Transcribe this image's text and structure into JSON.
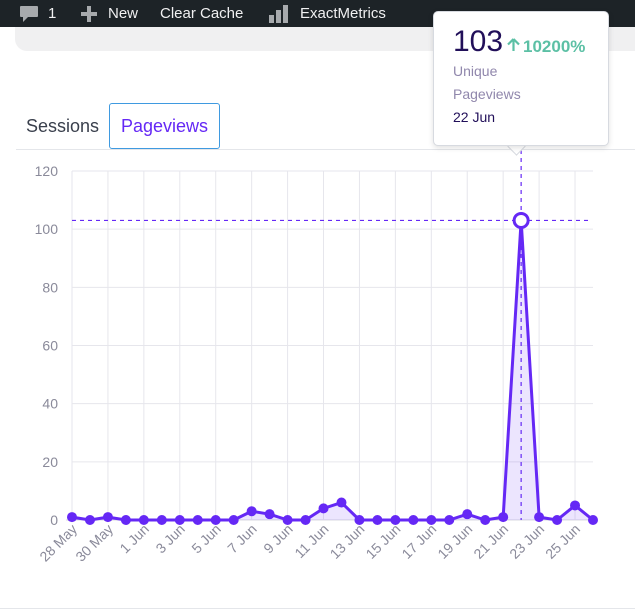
{
  "admin_bar": {
    "comments_count": "1",
    "new_label": "New",
    "clear_cache_label": "Clear Cache",
    "plugin_label": "ExactMetrics"
  },
  "tabs": [
    {
      "label": "Sessions",
      "active": false
    },
    {
      "label": "Pageviews",
      "active": true
    }
  ],
  "tooltip": {
    "value": "103",
    "change": "10200%",
    "label_line1": "Unique",
    "label_line2": "Pageviews",
    "date": "22 Jun"
  },
  "colors": {
    "accent": "#6528f5",
    "increase": "#5cc0a5",
    "admin_bar_bg": "#1d2327"
  },
  "chart_data": {
    "type": "line",
    "series": [
      {
        "name": "Unique Pageviews",
        "values": [
          1,
          0,
          1,
          0,
          0,
          0,
          0,
          0,
          0,
          0,
          3,
          2,
          0,
          0,
          4,
          6,
          0,
          0,
          0,
          0,
          0,
          0,
          2,
          0,
          1,
          103,
          1,
          0,
          5,
          0
        ]
      }
    ],
    "dates": [
      "28 May",
      "29 May",
      "30 May",
      "31 May",
      "1 Jun",
      "2 Jun",
      "3 Jun",
      "4 Jun",
      "5 Jun",
      "6 Jun",
      "7 Jun",
      "8 Jun",
      "9 Jun",
      "10 Jun",
      "11 Jun",
      "12 Jun",
      "13 Jun",
      "14 Jun",
      "15 Jun",
      "16 Jun",
      "17 Jun",
      "18 Jun",
      "19 Jun",
      "20 Jun",
      "21 Jun",
      "22 Jun",
      "23 Jun",
      "24 Jun",
      "25 Jun",
      "26 Jun"
    ],
    "x_tick_labels": [
      "28 May",
      "30 May",
      "1 Jun",
      "3 Jun",
      "5 Jun",
      "7 Jun",
      "9 Jun",
      "11 Jun",
      "13 Jun",
      "15 Jun",
      "17 Jun",
      "19 Jun",
      "21 Jun",
      "23 Jun",
      "25 Jun"
    ],
    "y_ticks": [
      "0",
      "20",
      "40",
      "60",
      "80",
      "100",
      "120"
    ],
    "ylim": [
      0,
      120
    ],
    "highlight_index": 25,
    "highlight_value": 103,
    "grid": true,
    "xlabel": "",
    "ylabel": ""
  }
}
